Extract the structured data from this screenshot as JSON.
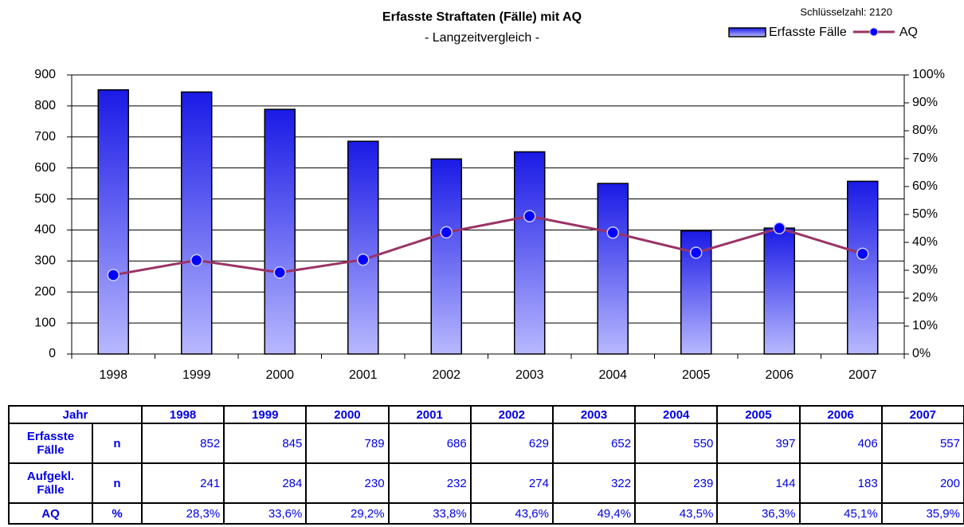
{
  "chart_data": {
    "type": "bar_line",
    "title": "Erfasste Straftaten (Fälle) mit AQ",
    "subtitle": "- Langzeitvergleich -",
    "annotation": "Schlüsselzahl:  2120",
    "categories": [
      "1998",
      "1999",
      "2000",
      "2001",
      "2002",
      "2003",
      "2004",
      "2005",
      "2006",
      "2007"
    ],
    "series": [
      {
        "name": "Erfasste Fälle",
        "type": "bar",
        "color": "#1a1ae6",
        "values": [
          852,
          845,
          789,
          686,
          629,
          652,
          550,
          397,
          406,
          557
        ]
      },
      {
        "name": "AQ",
        "type": "line",
        "axis": "y2",
        "color": "#993366",
        "values": [
          28.3,
          33.6,
          29.2,
          33.8,
          43.6,
          49.4,
          43.5,
          36.3,
          45.1,
          35.9
        ]
      }
    ],
    "ylim": [
      0,
      900
    ],
    "yticks": [
      0,
      100,
      200,
      300,
      400,
      500,
      600,
      700,
      800,
      900
    ],
    "y2lim": [
      0,
      100
    ],
    "y2ticks": [
      {
        "value": 0,
        "label": "0%"
      },
      {
        "value": 10,
        "label": "10%"
      },
      {
        "value": 20,
        "label": "20%"
      },
      {
        "value": 30,
        "label": "30%"
      },
      {
        "value": 40,
        "label": "40%"
      },
      {
        "value": 50,
        "label": "50%"
      },
      {
        "value": 60,
        "label": "60%"
      },
      {
        "value": 70,
        "label": "70%"
      },
      {
        "value": 80,
        "label": "80%"
      },
      {
        "value": 90,
        "label": "90%"
      },
      {
        "value": 100,
        "label": "100%"
      }
    ],
    "grid": true,
    "legend": "top-right"
  },
  "table": {
    "header": [
      "Jahr",
      "1998",
      "1999",
      "2000",
      "2001",
      "2002",
      "2003",
      "2004",
      "2005",
      "2006",
      "2007"
    ],
    "rows": [
      [
        "Erfasste Fälle",
        "n",
        "852",
        "845",
        "789",
        "686",
        "629",
        "652",
        "550",
        "397",
        "406",
        "557"
      ],
      [
        "Aufgekl. Fälle",
        "n",
        "241",
        "284",
        "230",
        "232",
        "274",
        "322",
        "239",
        "144",
        "183",
        "200"
      ],
      [
        "AQ",
        "%",
        "28,3%",
        "33,6%",
        "29,2%",
        "33,8%",
        "43,6%",
        "49,4%",
        "43,5%",
        "36,3%",
        "45,1%",
        "35,9%"
      ]
    ]
  }
}
